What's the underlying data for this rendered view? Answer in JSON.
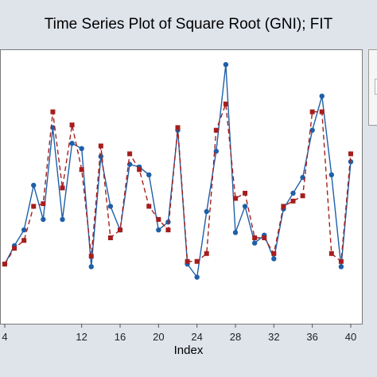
{
  "chart_data": {
    "type": "line",
    "title": "Time Series Plot of Square Root (GNI); FIT",
    "xlabel": "Index",
    "ylabel": "",
    "x_ticks": [
      4,
      12,
      16,
      20,
      24,
      28,
      32,
      36,
      40
    ],
    "xlim": [
      4,
      41
    ],
    "ylim": [
      0,
      1
    ],
    "grid": false,
    "series": [
      {
        "color": "#1f5fa8",
        "line_style": "solid",
        "marker": "circle",
        "x": [
          4,
          5,
          6,
          7,
          8,
          9,
          10,
          11,
          12,
          13,
          14,
          15,
          16,
          17,
          18,
          19,
          20,
          21,
          22,
          23,
          24,
          25,
          26,
          27,
          28,
          29,
          30,
          31,
          32,
          33,
          34,
          35,
          36,
          37,
          38,
          39,
          40
        ],
        "values": [
          0.2,
          0.27,
          0.33,
          0.5,
          0.37,
          0.72,
          0.37,
          0.66,
          0.64,
          0.19,
          0.61,
          0.42,
          0.33,
          0.58,
          0.57,
          0.54,
          0.33,
          0.36,
          0.71,
          0.2,
          0.15,
          0.4,
          0.63,
          0.96,
          0.32,
          0.42,
          0.28,
          0.31,
          0.22,
          0.41,
          0.47,
          0.53,
          0.71,
          0.84,
          0.54,
          0.19,
          0.59
        ]
      },
      {
        "color": "#a51e1e",
        "line_style": "dashed",
        "marker": "square",
        "x": [
          4,
          5,
          6,
          7,
          8,
          9,
          10,
          11,
          12,
          13,
          14,
          15,
          16,
          17,
          18,
          19,
          20,
          21,
          22,
          23,
          24,
          25,
          26,
          27,
          28,
          29,
          30,
          31,
          32,
          33,
          34,
          35,
          36,
          37,
          38,
          39,
          40
        ],
        "values": [
          0.2,
          0.26,
          0.29,
          0.42,
          0.43,
          0.78,
          0.49,
          0.73,
          0.56,
          0.23,
          0.65,
          0.3,
          0.33,
          0.62,
          0.56,
          0.42,
          0.37,
          0.33,
          0.72,
          0.21,
          0.21,
          0.24,
          0.71,
          0.81,
          0.45,
          0.47,
          0.3,
          0.3,
          0.24,
          0.42,
          0.44,
          0.46,
          0.78,
          0.78,
          0.24,
          0.21,
          0.62
        ]
      }
    ]
  }
}
